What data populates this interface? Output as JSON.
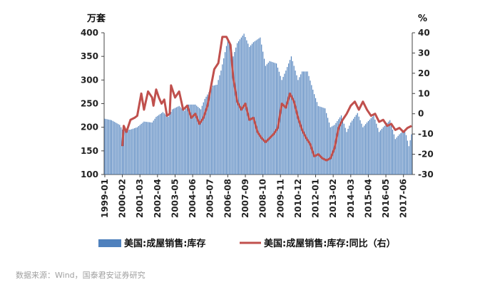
{
  "chart_data": {
    "type": "bar+line",
    "left_unit": "万套",
    "right_unit": "%",
    "y_left": {
      "min": 100,
      "max": 400,
      "ticks": [
        100,
        150,
        200,
        250,
        300,
        350,
        400
      ]
    },
    "y_right": {
      "min": -30,
      "max": 40,
      "ticks": [
        -30,
        -20,
        -10,
        0,
        10,
        20,
        30,
        40
      ]
    },
    "x_start": "1999-01",
    "x_end": "2017-12",
    "x_tick_labels": [
      "1999-01",
      "2000-02",
      "2001-03",
      "2002-04",
      "2003-05",
      "2004-06",
      "2005-07",
      "2006-08",
      "2007-09",
      "2008-10",
      "2009-11",
      "2010-12",
      "2012-01",
      "2013-02",
      "2014-03",
      "2015-04",
      "2016-05",
      "2017-06"
    ],
    "series": [
      {
        "name": "美国:成屋销售:库存",
        "type": "bar",
        "axis": "left",
        "color": "#4f81bd",
        "points": [
          [
            "1999-01",
            218
          ],
          [
            "1999-06",
            215
          ],
          [
            "1999-12",
            205
          ],
          [
            "2000-02",
            195
          ],
          [
            "2000-08",
            195
          ],
          [
            "2001-01",
            200
          ],
          [
            "2001-06",
            212
          ],
          [
            "2001-12",
            210
          ],
          [
            "2002-03",
            222
          ],
          [
            "2002-08",
            232
          ],
          [
            "2002-12",
            222
          ],
          [
            "2003-03",
            238
          ],
          [
            "2003-08",
            245
          ],
          [
            "2003-12",
            235
          ],
          [
            "2004-03",
            248
          ],
          [
            "2004-08",
            248
          ],
          [
            "2004-12",
            238
          ],
          [
            "2005-03",
            260
          ],
          [
            "2005-09",
            288
          ],
          [
            "2005-12",
            290
          ],
          [
            "2006-03",
            320
          ],
          [
            "2006-08",
            385
          ],
          [
            "2006-12",
            350
          ],
          [
            "2007-03",
            378
          ],
          [
            "2007-08",
            398
          ],
          [
            "2007-12",
            370
          ],
          [
            "2008-03",
            380
          ],
          [
            "2008-08",
            390
          ],
          [
            "2008-12",
            330
          ],
          [
            "2009-03",
            340
          ],
          [
            "2009-08",
            335
          ],
          [
            "2009-12",
            300
          ],
          [
            "2010-03",
            320
          ],
          [
            "2010-07",
            350
          ],
          [
            "2010-12",
            300
          ],
          [
            "2011-03",
            318
          ],
          [
            "2011-07",
            318
          ],
          [
            "2011-12",
            270
          ],
          [
            "2012-03",
            245
          ],
          [
            "2012-08",
            240
          ],
          [
            "2012-12",
            200
          ],
          [
            "2013-03",
            205
          ],
          [
            "2013-08",
            225
          ],
          [
            "2013-12",
            190
          ],
          [
            "2014-03",
            210
          ],
          [
            "2014-08",
            230
          ],
          [
            "2014-12",
            200
          ],
          [
            "2015-03",
            210
          ],
          [
            "2015-08",
            225
          ],
          [
            "2015-12",
            190
          ],
          [
            "2016-03",
            200
          ],
          [
            "2016-08",
            215
          ],
          [
            "2016-12",
            175
          ],
          [
            "2017-03",
            185
          ],
          [
            "2017-07",
            195
          ],
          [
            "2017-10",
            160
          ],
          [
            "2017-12",
            185
          ]
        ]
      },
      {
        "name": "美国:成屋销售:库存:同比（右）",
        "type": "line",
        "axis": "right",
        "color": "#c0504d",
        "points": [
          [
            "2000-02",
            -16
          ],
          [
            "2000-03",
            -6
          ],
          [
            "2000-05",
            -9
          ],
          [
            "2000-08",
            -3
          ],
          [
            "2000-11",
            -2
          ],
          [
            "2001-01",
            -1
          ],
          [
            "2001-04",
            10
          ],
          [
            "2001-06",
            2
          ],
          [
            "2001-09",
            11
          ],
          [
            "2001-12",
            8
          ],
          [
            "2002-01",
            4
          ],
          [
            "2002-03",
            12
          ],
          [
            "2002-05",
            8
          ],
          [
            "2002-07",
            5
          ],
          [
            "2002-09",
            7
          ],
          [
            "2002-11",
            -1
          ],
          [
            "2003-01",
            0
          ],
          [
            "2003-02",
            14
          ],
          [
            "2003-05",
            8
          ],
          [
            "2003-08",
            11
          ],
          [
            "2003-11",
            2
          ],
          [
            "2004-02",
            4
          ],
          [
            "2004-05",
            -2
          ],
          [
            "2004-08",
            0
          ],
          [
            "2004-11",
            -5
          ],
          [
            "2005-02",
            -2
          ],
          [
            "2005-05",
            4
          ],
          [
            "2005-08",
            15
          ],
          [
            "2005-10",
            22
          ],
          [
            "2006-01",
            25
          ],
          [
            "2006-04",
            38
          ],
          [
            "2006-07",
            38
          ],
          [
            "2006-10",
            34
          ],
          [
            "2006-12",
            18
          ],
          [
            "2007-03",
            6
          ],
          [
            "2007-06",
            2
          ],
          [
            "2007-09",
            5
          ],
          [
            "2007-12",
            -3
          ],
          [
            "2008-03",
            -2
          ],
          [
            "2008-06",
            -9
          ],
          [
            "2008-09",
            -12
          ],
          [
            "2008-12",
            -14
          ],
          [
            "2009-03",
            -12
          ],
          [
            "2009-06",
            -10
          ],
          [
            "2009-09",
            -7
          ],
          [
            "2009-12",
            5
          ],
          [
            "2010-03",
            3
          ],
          [
            "2010-06",
            10
          ],
          [
            "2010-09",
            6
          ],
          [
            "2010-12",
            -2
          ],
          [
            "2011-03",
            -8
          ],
          [
            "2011-06",
            -12
          ],
          [
            "2011-09",
            -15
          ],
          [
            "2011-12",
            -21
          ],
          [
            "2012-03",
            -20
          ],
          [
            "2012-06",
            -22
          ],
          [
            "2012-09",
            -23
          ],
          [
            "2012-12",
            -22
          ],
          [
            "2013-03",
            -17
          ],
          [
            "2013-06",
            -7
          ],
          [
            "2013-09",
            -3
          ],
          [
            "2013-12",
            0
          ],
          [
            "2014-03",
            4
          ],
          [
            "2014-06",
            6
          ],
          [
            "2014-09",
            2
          ],
          [
            "2014-12",
            6
          ],
          [
            "2015-03",
            2
          ],
          [
            "2015-06",
            -1
          ],
          [
            "2015-09",
            0
          ],
          [
            "2015-12",
            -4
          ],
          [
            "2016-03",
            -3
          ],
          [
            "2016-06",
            -6
          ],
          [
            "2016-09",
            -5
          ],
          [
            "2016-12",
            -8
          ],
          [
            "2017-03",
            -7
          ],
          [
            "2017-06",
            -9
          ],
          [
            "2017-09",
            -7
          ],
          [
            "2017-12",
            -6
          ]
        ]
      }
    ],
    "legend_position": "bottom",
    "grid": false
  },
  "source_text": "数据来源：Wind，国泰君安证券研究"
}
